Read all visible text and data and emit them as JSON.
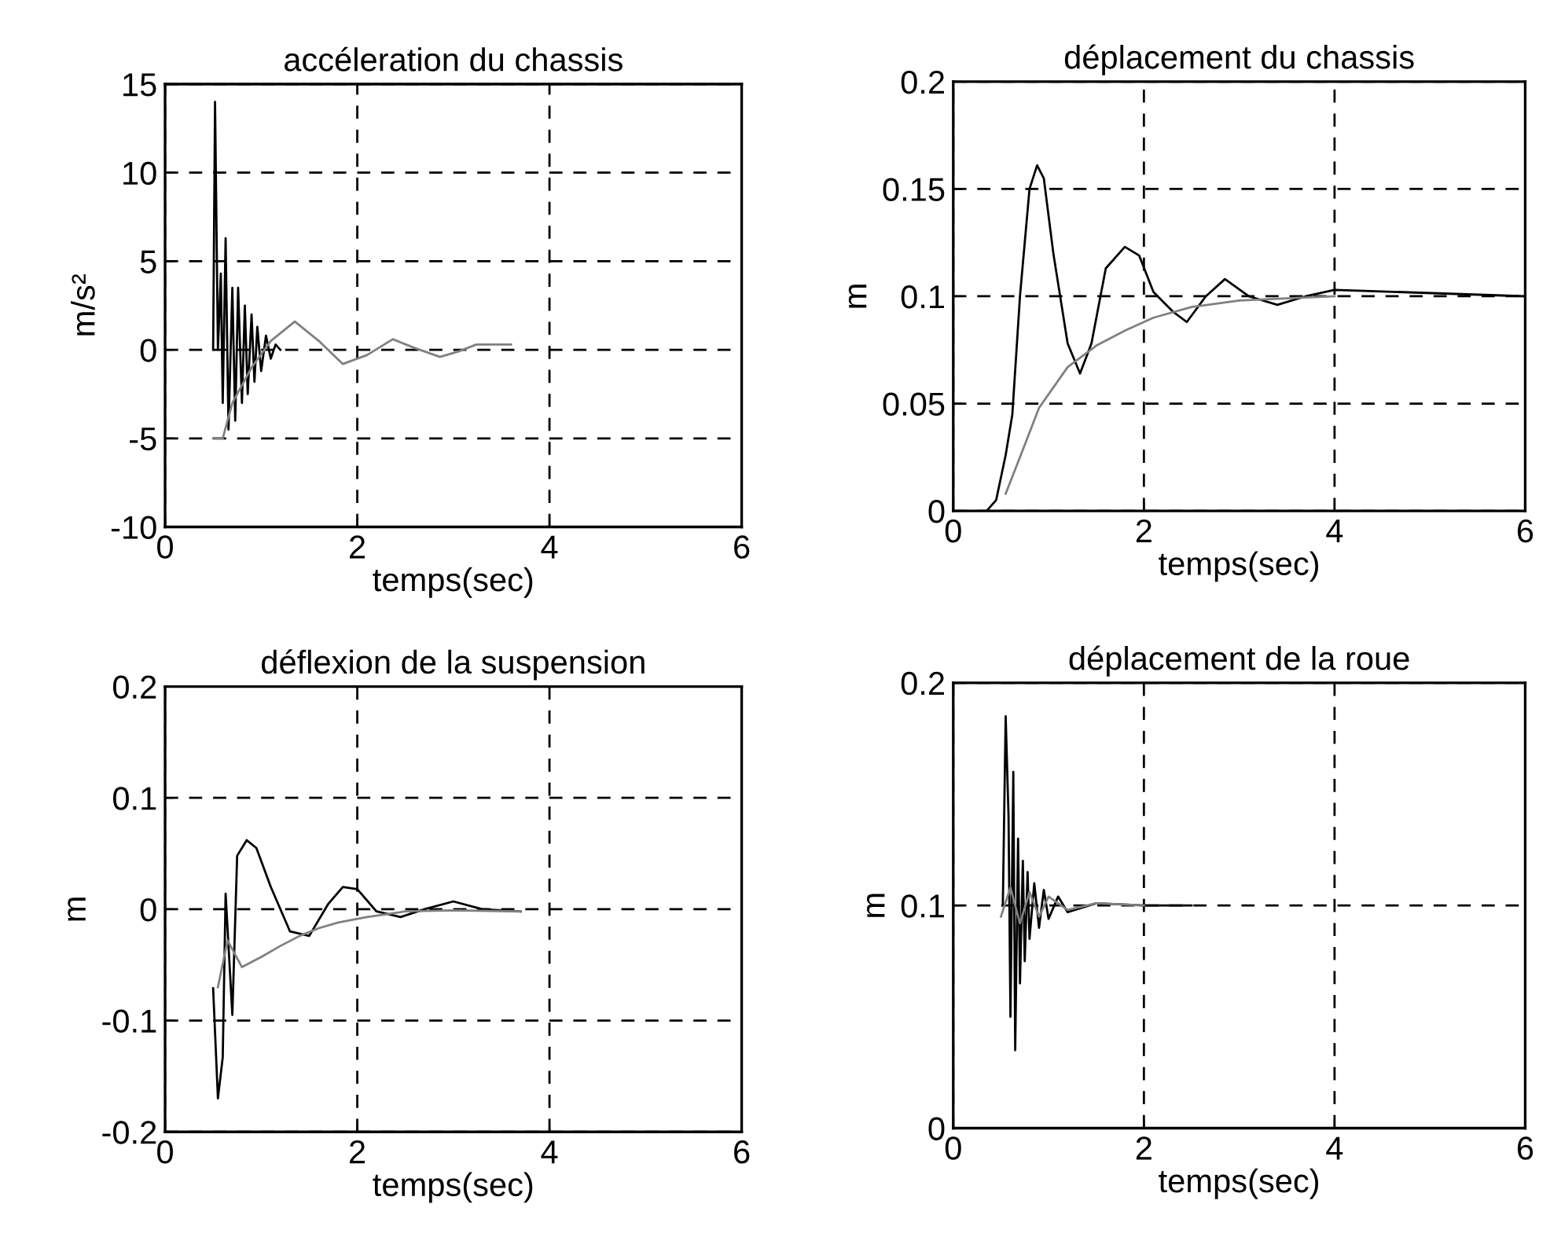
{
  "chart_data": [
    {
      "type": "line",
      "title": "accéleration du chassis",
      "xlabel": "temps(sec)",
      "ylabel": "m/s²",
      "xlim": [
        0,
        6
      ],
      "xticks": [
        0,
        2,
        4,
        6
      ],
      "ylim": [
        -10,
        15
      ],
      "yticks": [
        -10,
        -5,
        0,
        5,
        10,
        15
      ],
      "grid": true,
      "line_style": "solid",
      "series": [
        {
          "color": "#000000",
          "x": [
            0.5,
            0.52,
            0.55,
            0.58,
            0.6,
            0.63,
            0.66,
            0.7,
            0.73,
            0.76,
            0.8,
            0.83,
            0.86,
            0.9,
            0.93,
            0.96,
            1.0,
            1.05,
            1.1,
            1.15,
            1.2
          ],
          "values": [
            0,
            14,
            0,
            4.3,
            -3,
            6.3,
            -4.5,
            3.5,
            -4,
            3.5,
            -3,
            2.5,
            -2.5,
            2,
            -1.8,
            1.3,
            -1.2,
            0.8,
            -0.5,
            0.3,
            0
          ]
        },
        {
          "color": "#808080",
          "x": [
            0.5,
            0.6,
            0.7,
            0.9,
            1.1,
            1.35,
            1.6,
            1.85,
            2.1,
            2.37,
            2.6,
            2.86,
            3.05,
            3.24,
            3.6
          ],
          "values": [
            -5,
            -5,
            -3,
            -1,
            0.5,
            1.6,
            0.5,
            -0.8,
            -0.3,
            0.6,
            0.1,
            -0.4,
            -0.1,
            0.3,
            0.3
          ]
        }
      ]
    },
    {
      "type": "line",
      "title": "déplacement du chassis",
      "xlabel": "temps(sec)",
      "ylabel": "m",
      "xlim": [
        0,
        6
      ],
      "xticks": [
        0,
        2,
        4,
        6
      ],
      "ylim": [
        0,
        0.2
      ],
      "yticks": [
        0,
        0.05,
        0.1,
        0.15,
        0.2
      ],
      "grid": true,
      "line_style": "solid",
      "series": [
        {
          "color": "#000000",
          "x": [
            0.35,
            0.45,
            0.55,
            0.62,
            0.7,
            0.8,
            0.88,
            0.95,
            1.05,
            1.2,
            1.33,
            1.45,
            1.6,
            1.8,
            1.95,
            2.1,
            2.3,
            2.45,
            2.65,
            2.85,
            3.1,
            3.4,
            3.7,
            4.0,
            6.0
          ],
          "values": [
            0,
            0.005,
            0.026,
            0.045,
            0.1,
            0.15,
            0.161,
            0.155,
            0.12,
            0.078,
            0.064,
            0.078,
            0.113,
            0.123,
            0.119,
            0.102,
            0.093,
            0.088,
            0.1,
            0.108,
            0.1,
            0.096,
            0.1,
            0.103,
            0.1
          ]
        },
        {
          "color": "#808080",
          "x": [
            0.55,
            0.7,
            0.9,
            1.2,
            1.5,
            1.8,
            2.1,
            2.5,
            3.0,
            3.5,
            4.0
          ],
          "values": [
            0.008,
            0.025,
            0.048,
            0.067,
            0.077,
            0.084,
            0.09,
            0.095,
            0.098,
            0.099,
            0.1
          ]
        }
      ]
    },
    {
      "type": "line",
      "title": "déflexion de la suspension",
      "xlabel": "temps(sec)",
      "ylabel": "m",
      "xlim": [
        0,
        6
      ],
      "xticks": [
        0,
        2,
        4,
        6
      ],
      "ylim": [
        -0.2,
        0.2
      ],
      "yticks": [
        -0.2,
        -0.1,
        0,
        0.1,
        0.2
      ],
      "grid": true,
      "line_style": "solid",
      "series": [
        {
          "color": "#000000",
          "x": [
            0.5,
            0.55,
            0.6,
            0.63,
            0.7,
            0.75,
            0.85,
            0.95,
            1.1,
            1.3,
            1.5,
            1.7,
            1.85,
            2.0,
            2.2,
            2.45,
            2.7,
            3.0,
            3.3,
            3.7
          ],
          "values": [
            -0.071,
            -0.17,
            -0.133,
            0.014,
            -0.095,
            0.048,
            0.062,
            0.055,
            0.02,
            -0.02,
            -0.024,
            0.005,
            0.02,
            0.018,
            -0.002,
            -0.007,
            0,
            0.007,
            0,
            -0.002
          ]
        },
        {
          "color": "#808080",
          "x": [
            0.55,
            0.65,
            0.8,
            1.0,
            1.2,
            1.4,
            1.6,
            1.8,
            2.1,
            2.5,
            3.0,
            3.7
          ],
          "values": [
            -0.07,
            -0.028,
            -0.052,
            -0.043,
            -0.033,
            -0.024,
            -0.017,
            -0.012,
            -0.007,
            -0.002,
            -0.001,
            -0.002
          ]
        }
      ]
    },
    {
      "type": "line",
      "title": "déplacement de la roue",
      "xlabel": "temps(sec)",
      "ylabel": "m",
      "xlim": [
        0,
        6
      ],
      "xticks": [
        0,
        2,
        4,
        6
      ],
      "ylim": [
        0,
        0.2
      ],
      "yticks": [
        0,
        0.1,
        0.2
      ],
      "grid": true,
      "line_style": "solid",
      "series": [
        {
          "color": "#000000",
          "x": [
            0.52,
            0.55,
            0.58,
            0.6,
            0.63,
            0.65,
            0.68,
            0.7,
            0.73,
            0.75,
            0.78,
            0.8,
            0.85,
            0.9,
            0.95,
            1.0,
            1.1,
            1.2,
            1.5,
            2.0,
            2.5
          ],
          "values": [
            0.1,
            0.185,
            0.14,
            0.05,
            0.16,
            0.035,
            0.13,
            0.065,
            0.12,
            0.075,
            0.115,
            0.085,
            0.11,
            0.09,
            0.107,
            0.094,
            0.104,
            0.097,
            0.101,
            0.1,
            0.1
          ]
        },
        {
          "color": "#808080",
          "x": [
            0.5,
            0.6,
            0.7,
            0.8,
            0.9,
            1.0,
            1.2,
            1.5,
            2.0
          ],
          "values": [
            0.095,
            0.108,
            0.092,
            0.106,
            0.095,
            0.104,
            0.098,
            0.101,
            0.1
          ]
        }
      ]
    }
  ]
}
